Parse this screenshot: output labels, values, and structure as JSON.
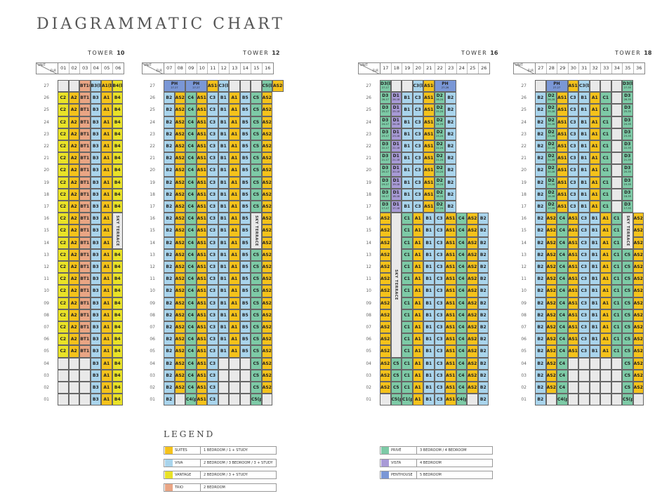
{
  "title": "DIAGRAMMATIC CHART",
  "header_unit": "UNIT",
  "header_flr": "FLR",
  "sky_terrace": "SKY TERRACE",
  "floors": [
    "27",
    "26",
    "25",
    "24",
    "23",
    "22",
    "21",
    "20",
    "19",
    "18",
    "17",
    "16",
    "15",
    "14",
    "13",
    "12",
    "11",
    "10",
    "09",
    "08",
    "07",
    "06",
    "05",
    "04",
    "03",
    "02",
    "01"
  ],
  "colors": {
    "SUITES": "#f5c21b",
    "VIVA": "#a9d4ec",
    "VANTAGE": "#e9e227",
    "TRIO": "#e9a584",
    "PRIVE": "#7dcaa6",
    "VISTA": "#a89ad6",
    "PENTHOUSE": "#7a97d6"
  },
  "towers": [
    {
      "label": "TOWER",
      "number": "10",
      "units": [
        "01",
        "02",
        "03",
        "04",
        "05",
        "06"
      ]
    },
    {
      "label": "TOWER",
      "number": "12",
      "units": [
        "07",
        "08",
        "09",
        "10",
        "11",
        "12",
        "13",
        "14",
        "15",
        "16"
      ]
    },
    {
      "label": "TOWER",
      "number": "16",
      "units": [
        "17",
        "18",
        "19",
        "20",
        "21",
        "22",
        "23",
        "24",
        "25",
        "26"
      ]
    },
    {
      "label": "TOWER",
      "number": "18",
      "units": [
        "27",
        "28",
        "29",
        "30",
        "31",
        "32",
        "33",
        "34",
        "35",
        "36"
      ]
    }
  ],
  "legend": {
    "title": "LEGEND",
    "items": [
      {
        "name": "SUITES",
        "desc": "1 BEDROOM / 1 + STUDY",
        "color": "#f5c21b"
      },
      {
        "name": "VIVA",
        "desc": "2 BEDROOM / 3 BEDROOM / 3 + STUDY",
        "color": "#a9d4ec"
      },
      {
        "name": "VANTAGE",
        "desc": "2 BEDROOM / 3 + STUDY",
        "color": "#e9e227"
      },
      {
        "name": "TRIO",
        "desc": "2 BEDROOM",
        "color": "#e9a584"
      },
      {
        "name": "PRIVÉ",
        "desc": "3 BEDROOM / 4 BEDROOM",
        "color": "#7dcaa6"
      },
      {
        "name": "VISTA",
        "desc": "4 BEDROOM",
        "color": "#a89ad6"
      },
      {
        "name": "PENTHOUSE",
        "desc": "5 BEDROOM",
        "color": "#7a97d6"
      }
    ]
  }
}
